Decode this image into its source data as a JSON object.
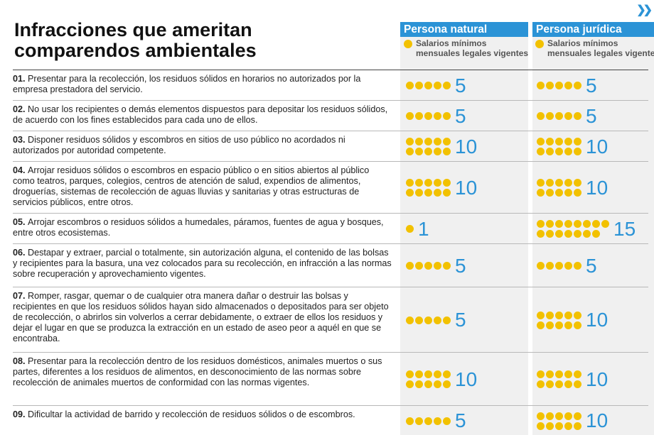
{
  "title_line1": "Infracciones que ameritan",
  "title_line2": "comparendos ambientales",
  "columns": {
    "natural": {
      "label": "Persona natural",
      "legend_line1": "Salarios mínimos",
      "legend_line2": "mensuales legales vigentes"
    },
    "juridica": {
      "label": "Persona jurídica",
      "legend_line1": "Salarios mínimos",
      "legend_line2": "mensuales legales vigentes"
    }
  },
  "colors": {
    "accent": "#2b93d6",
    "dot": "#f2c100",
    "column_bg": "#f0f0f0"
  },
  "icons": {
    "more": "fast-forward-icon"
  },
  "chart_data": {
    "type": "table",
    "unit": "Salarios mínimos mensuales legales vigentes",
    "rows": [
      {
        "num": "01.",
        "text": "Presentar para la recolección, los residuos sólidos en horarios no autorizados por la empresa prestadora del servicio.",
        "natural": 5,
        "juridica": 5
      },
      {
        "num": "02.",
        "text": "No usar los recipientes o demás elementos dispuestos para depositar los residuos sólidos, de acuerdo con los fines establecidos para cada uno de ellos.",
        "natural": 5,
        "juridica": 5
      },
      {
        "num": "03.",
        "text": "Disponer residuos sólidos y escombros en sitios de uso público no acordados ni autorizados por autoridad competente.",
        "natural": 10,
        "juridica": 10
      },
      {
        "num": "04.",
        "text": "Arrojar residuos sólidos o escombros en espacio público o en sitios abiertos al público como teatros, parques, colegios, centros de atención de salud, expendios de alimentos, droguerías, sistemas de recolección de aguas lluvias y sanitarias y otras estructuras de servicios públicos, entre otros.",
        "natural": 10,
        "juridica": 10
      },
      {
        "num": "05.",
        "text": "Arrojar escombros o residuos sólidos a humedales, páramos, fuentes de agua y bosques, entre otros ecosistemas.",
        "natural": 1,
        "juridica": 15
      },
      {
        "num": "06.",
        "text": "Destapar y extraer, parcial o totalmente, sin autorización alguna, el contenido de las bolsas y recipientes para la basura, una vez colocados para su recolección, en infracción a las normas sobre recuperación y aprovechamiento vigentes.",
        "natural": 5,
        "juridica": 5
      },
      {
        "num": "07.",
        "text": "Romper, rasgar, quemar o de cualquier otra manera dañar o destruir las bolsas y recipientes en que los residuos sólidos hayan sido almacenados o depositados para ser objeto de recolección, o abrirlos sin volverlos a cerrar debidamente, o extraer de ellos los residuos y dejar el lugar en que se produzca la extracción en un estado de aseo peor a aquél en que se encontraba.",
        "natural": 5,
        "juridica": 10
      },
      {
        "num": "08.",
        "text": "Presentar para la recolección dentro de los residuos domésticos, animales muertos o sus partes, diferentes a los residuos de alimentos, en desconocimiento de las normas sobre recolección de animales muertos de conformidad con las normas vigentes.",
        "natural": 10,
        "juridica": 10
      },
      {
        "num": "09.",
        "text": "Dificultar la actividad de barrido y recolección de residuos sólidos o de escombros.",
        "natural": 5,
        "juridica": 10
      }
    ]
  }
}
